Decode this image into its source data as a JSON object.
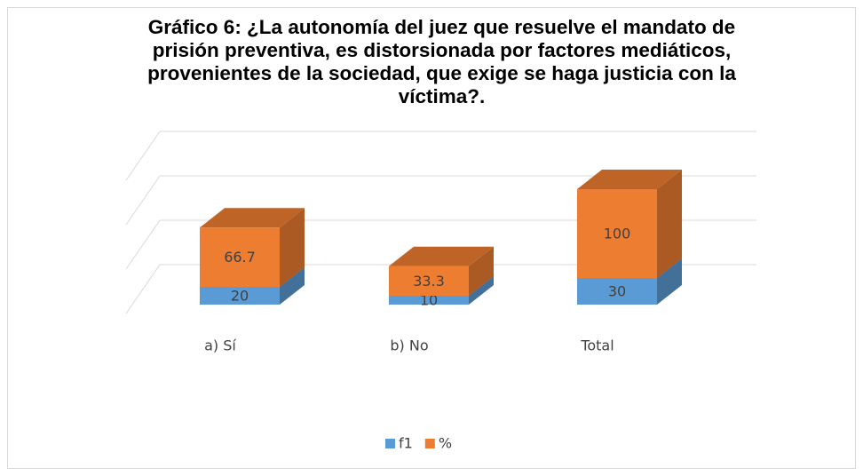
{
  "chart_data": {
    "type": "bar3d_stacked",
    "title": "Gráfico 6: ¿La autonomía del juez que resuelve el mandato de prisión preventiva, es distorsionada por factores mediáticos, provenientes de la sociedad, que exige se haga justicia con la víctima?.",
    "categories": [
      "a) Sí",
      "b) No",
      "Total"
    ],
    "series": [
      {
        "name": "f1",
        "color": "#5b9bd5",
        "values": [
          20,
          10,
          30
        ]
      },
      {
        "name": "%",
        "color": "#ed7d31",
        "values": [
          66.7,
          33.3,
          100
        ]
      }
    ],
    "ylim": [
      0,
      150
    ],
    "yticks": [
      0,
      50,
      100,
      150
    ],
    "grid": true,
    "legend": "bottom"
  }
}
